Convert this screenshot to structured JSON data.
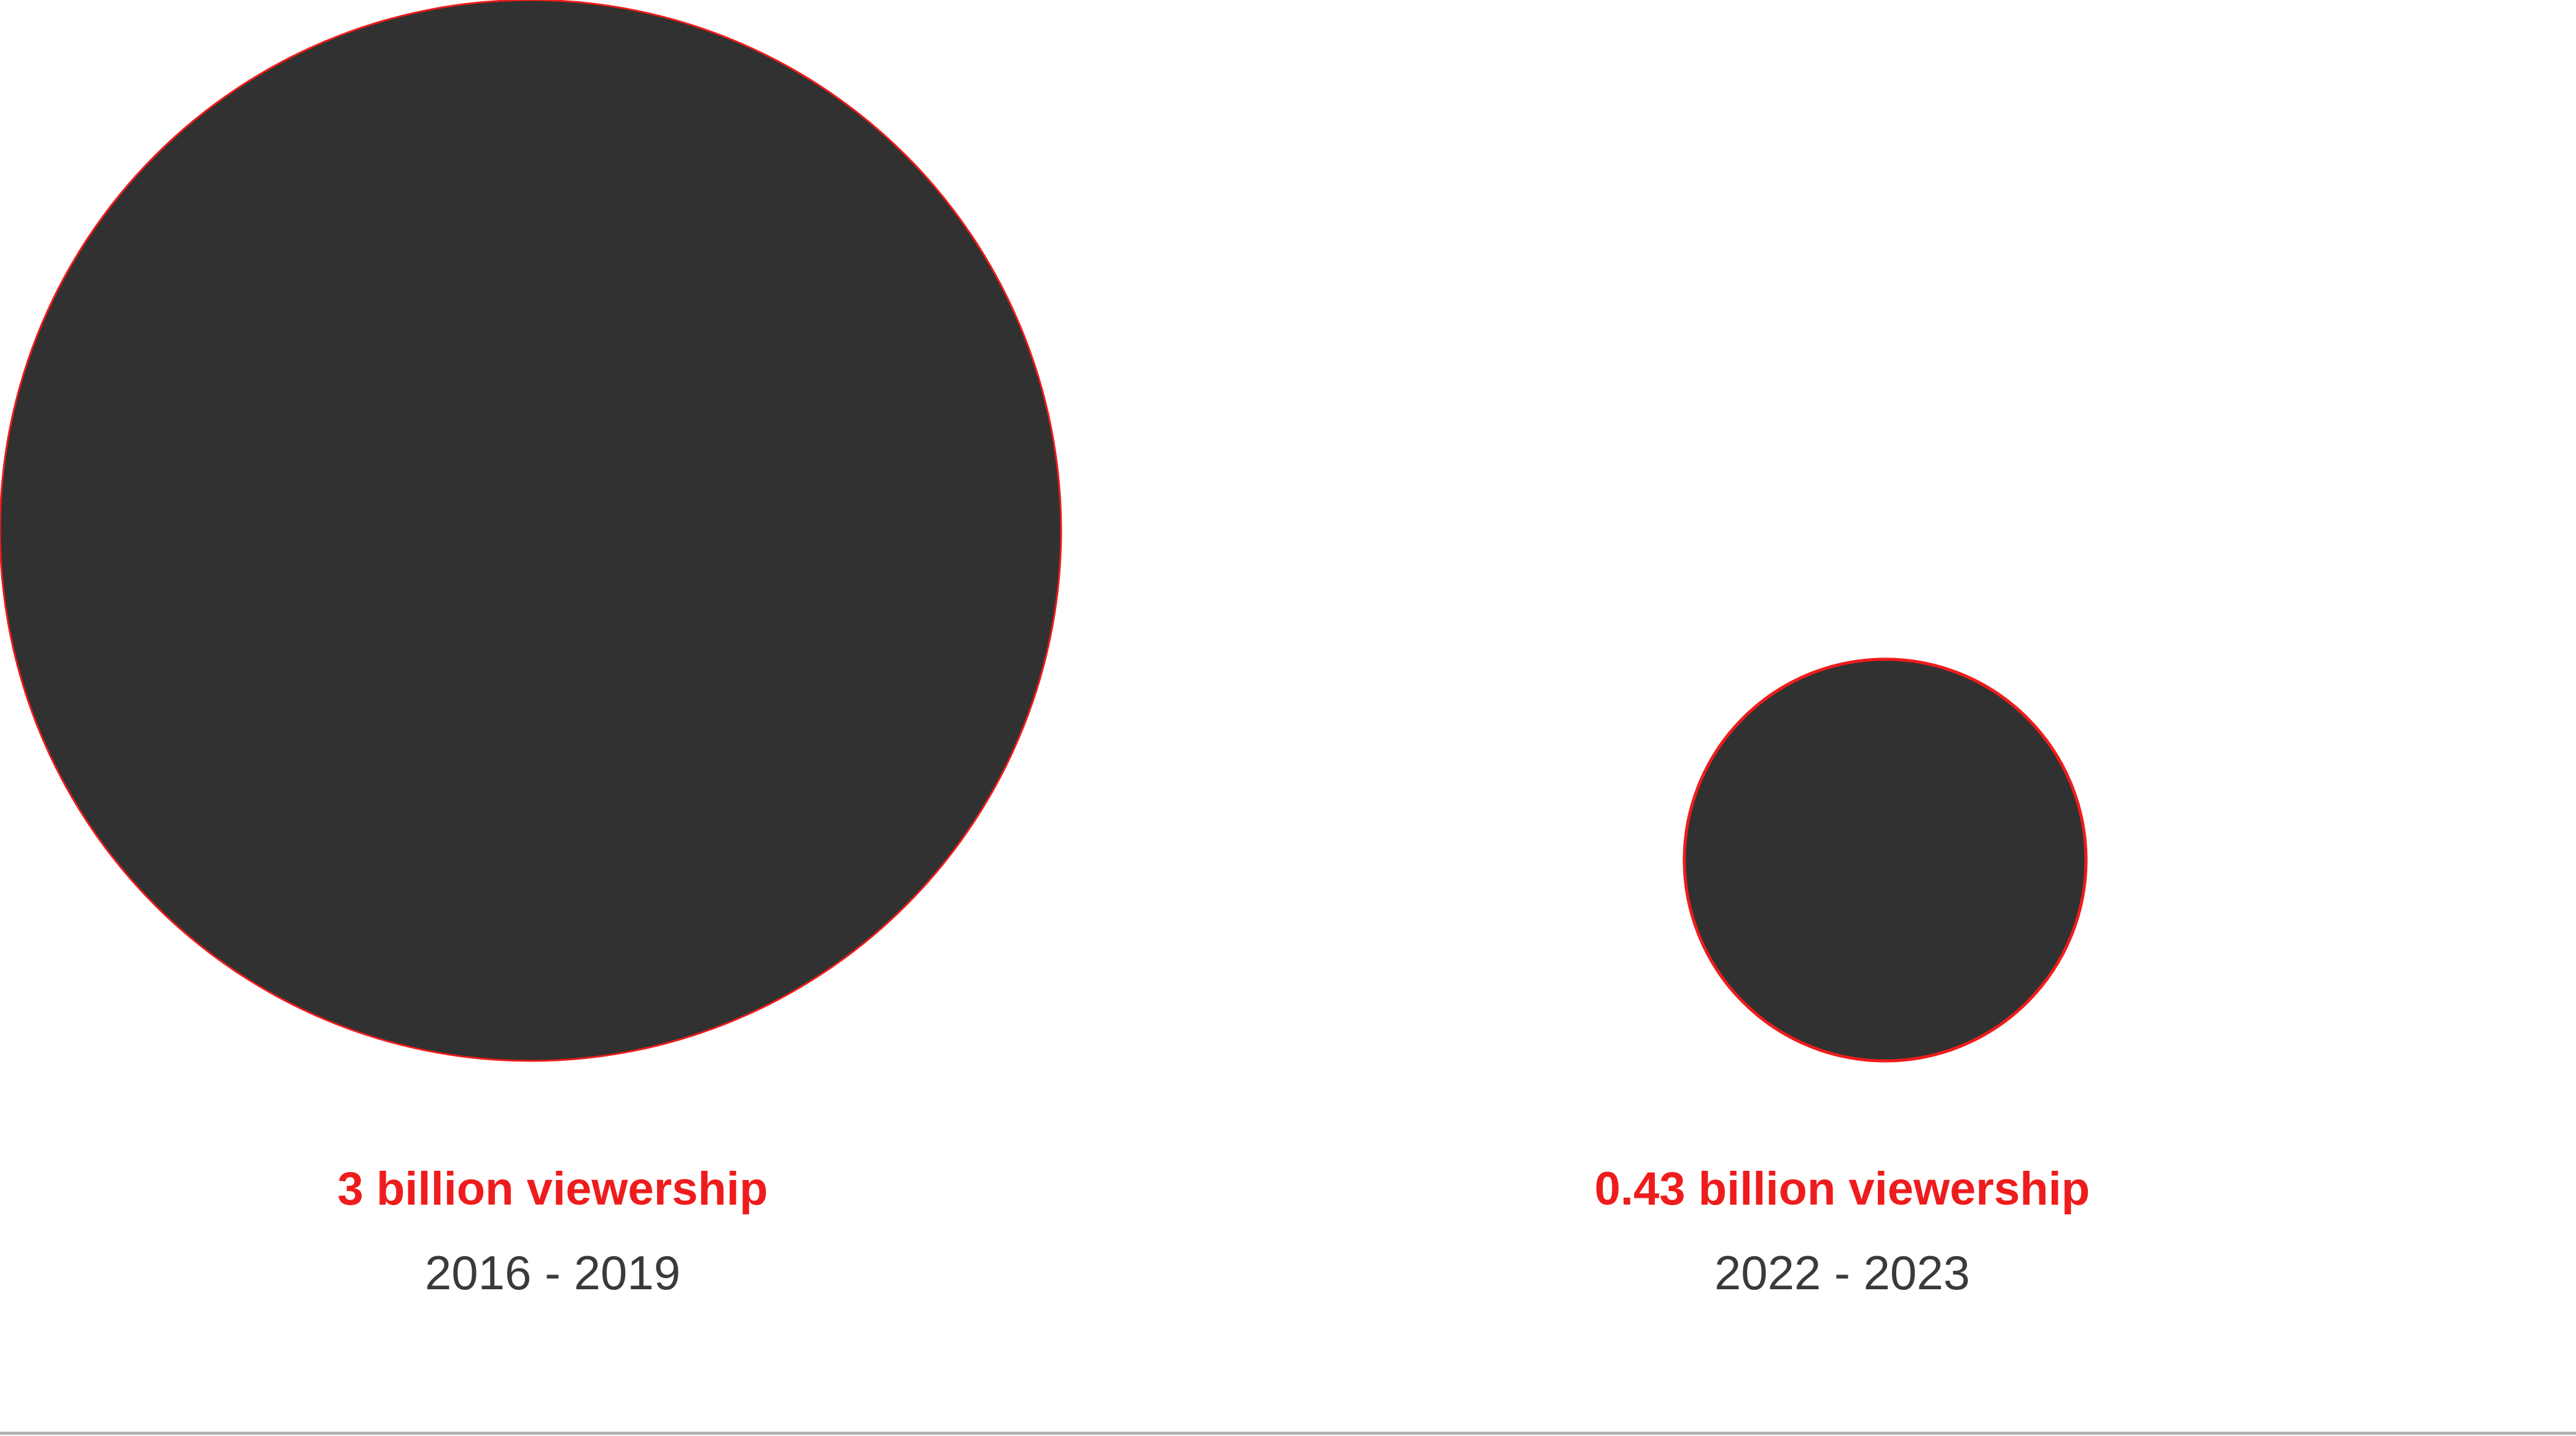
{
  "chart_data": {
    "type": "bubble",
    "unit": "billion",
    "colors": {
      "bubble_fill": "#313131",
      "bubble_stroke": "#ee1c1c",
      "value_label": "#ee1c1c",
      "period_label": "#3a3a3a",
      "baseline": "#b3b3b3"
    },
    "series": [
      {
        "period": "2016 - 2019",
        "value": 3,
        "label": "3 billion viewership"
      },
      {
        "period": "2022 - 2023",
        "value": 0.43,
        "label": "0.43 billion viewership"
      }
    ]
  }
}
